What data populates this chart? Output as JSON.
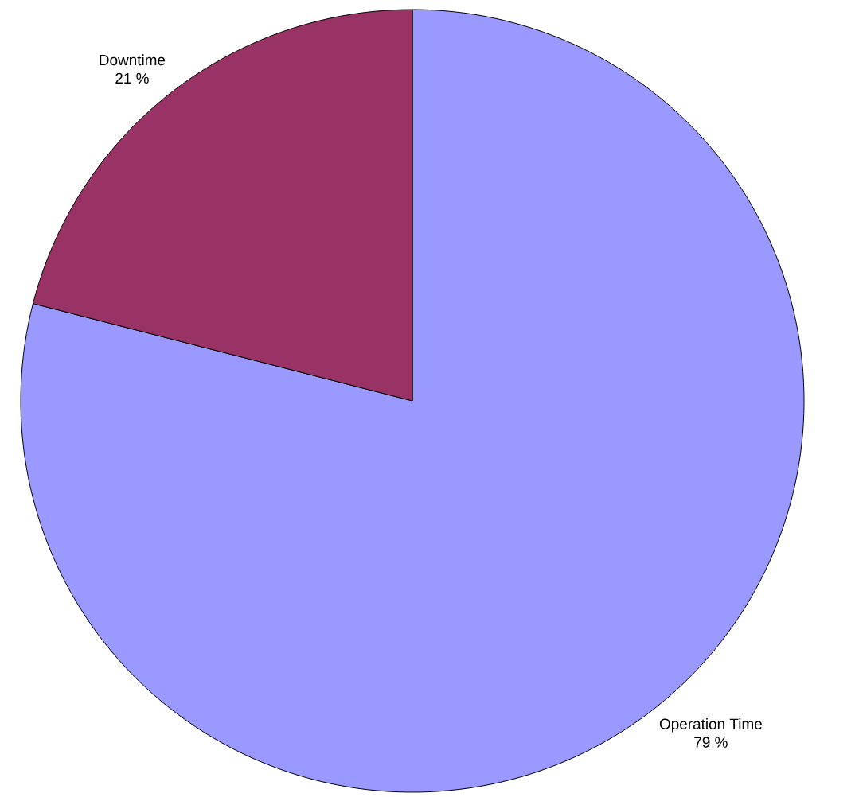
{
  "chart_data": {
    "type": "pie",
    "categories": [
      "Operation Time",
      "Downtime"
    ],
    "values": [
      79,
      21
    ],
    "value_labels": [
      "79 %",
      "21 %"
    ],
    "colors": [
      "#9999ff",
      "#993366"
    ]
  }
}
